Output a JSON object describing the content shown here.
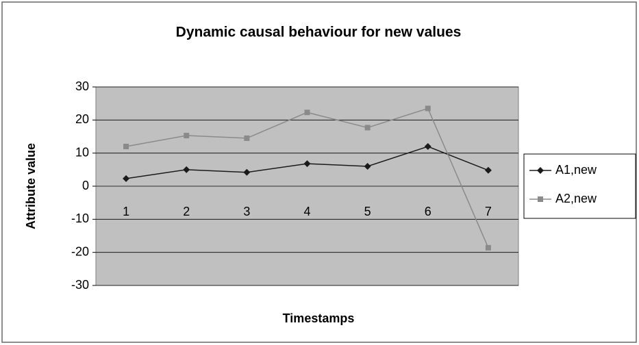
{
  "chart_data": {
    "type": "line",
    "title": "Dynamic causal behaviour for new values",
    "xlabel": "Timestamps",
    "ylabel": "Attribute value",
    "categories": [
      "1",
      "2",
      "3",
      "4",
      "5",
      "6",
      "7"
    ],
    "series": [
      {
        "name": "A1,new",
        "color": "#1a1a1a",
        "marker": "diamond",
        "values": [
          2.3,
          5,
          4.2,
          6.8,
          6,
          12,
          4.8
        ]
      },
      {
        "name": "A2,new",
        "color": "#8a8a8a",
        "marker": "square",
        "values": [
          12,
          15.3,
          14.5,
          22.3,
          17.7,
          23.5,
          -18.6
        ]
      }
    ],
    "ylim": [
      -30,
      30
    ],
    "yticks": [
      -30,
      -20,
      -10,
      0,
      10,
      20,
      30
    ],
    "grid": true,
    "legend": "right"
  }
}
